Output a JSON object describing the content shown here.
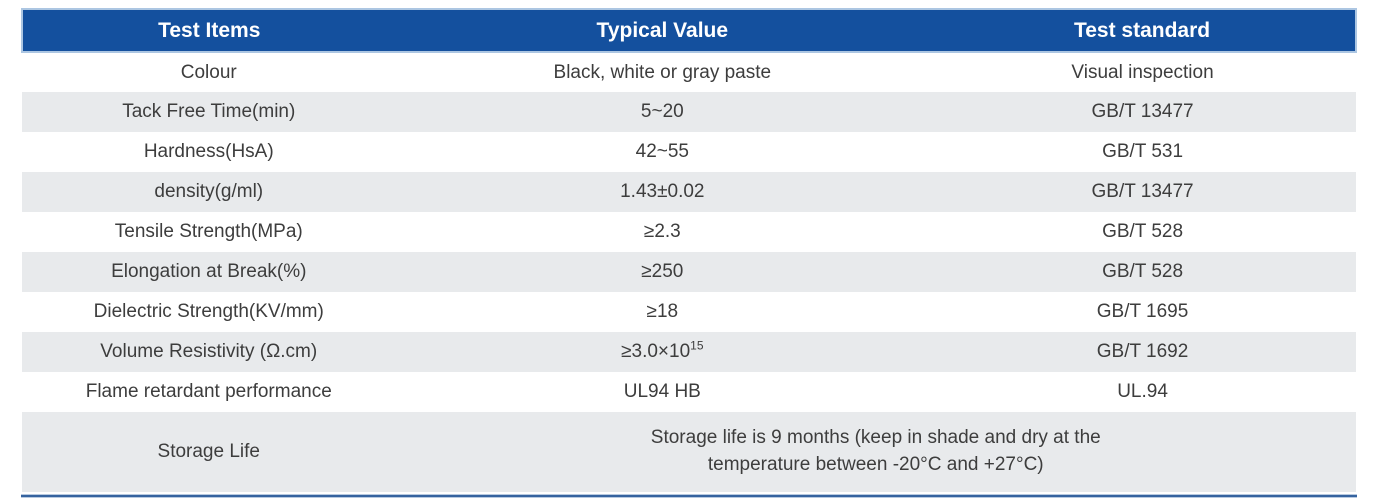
{
  "table": {
    "columns": [
      {
        "label": "Test Items"
      },
      {
        "label": "Typical Value"
      },
      {
        "label": "Test standard"
      }
    ],
    "rows": [
      {
        "item": "Colour",
        "value": "Black, white or gray paste",
        "standard": "Visual inspection"
      },
      {
        "item": "Tack Free Time(min)",
        "value": "5~20",
        "standard": "GB/T 13477"
      },
      {
        "item": "Hardness(HsA)",
        "value": "42~55",
        "standard": "GB/T 531"
      },
      {
        "item": "density(g/ml)",
        "value": "1.43±0.02",
        "standard": "GB/T 13477"
      },
      {
        "item": "Tensile Strength(MPa)",
        "value": "≥2.3",
        "standard": "GB/T 528"
      },
      {
        "item": "Elongation at Break(%)",
        "value": "≥250",
        "standard": "GB/T 528"
      },
      {
        "item": "Dielectric Strength(KV/mm)",
        "value": "≥18",
        "standard": "GB/T 1695"
      },
      {
        "item": "Volume Resistivity (Ω.cm)",
        "value_base": "≥3.0×10",
        "value_exponent": "15",
        "standard": "GB/T 1692"
      },
      {
        "item": "Flame retardant performance",
        "value": "UL94 HB",
        "standard": "UL.94"
      },
      {
        "item": "Storage Life",
        "value_line1": "Storage life is 9 months (keep in shade and dry at the",
        "value_line2": "temperature between -20°C and +27°C)"
      }
    ]
  },
  "colors": {
    "header_bg": "#14509E",
    "header_text": "#FFFFFF",
    "header_border": "#ACC6E2",
    "row_stripe": "#E8EAEC",
    "row_plain": "#FFFFFF",
    "body_text": "#3D3D3D",
    "bottom_rule": "#35639F",
    "bottom_rule_edge": "#B7C9E0"
  }
}
